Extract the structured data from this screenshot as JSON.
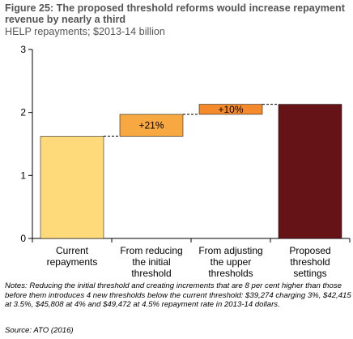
{
  "figure": {
    "title": "Figure 25: The proposed threshold reforms would increase repayment revenue by nearly a third",
    "subtitle": "HELP repayments; $2013-14 billion",
    "notes": "Notes: Reducing the initial threshold and creating increments that are 8 per cent higher than those before them introduces 4 new thresholds below the current threshold: $39,274 charging 3%, $42,415 at 3.5%, $45,808 at 4% and $49,472 at 4.5% repayment rate in 2013-14 dollars.",
    "source": "Source: ATO (2016)"
  },
  "chart_data": {
    "type": "bar",
    "subtype": "waterfall",
    "categories": [
      [
        "Current",
        "repayments"
      ],
      [
        "From reducing",
        "the initial",
        "threshold"
      ],
      [
        "From adjusting",
        "the upper",
        "thresholds"
      ],
      [
        "Proposed",
        "threshold",
        "settings"
      ]
    ],
    "bars": [
      {
        "start": 0,
        "end": 1.62,
        "label": "",
        "color": "#FFDA7B"
      },
      {
        "start": 1.62,
        "end": 1.97,
        "label": "+21%",
        "color": "#F7A840"
      },
      {
        "start": 1.97,
        "end": 2.13,
        "label": "+10%",
        "color": "#F48A2C"
      },
      {
        "start": 0,
        "end": 2.13,
        "label": "",
        "color": "#661318"
      }
    ],
    "ylim": [
      0,
      3
    ],
    "yticks": [
      "0",
      "1",
      "2",
      "3"
    ],
    "grid": false,
    "connectors": true
  }
}
